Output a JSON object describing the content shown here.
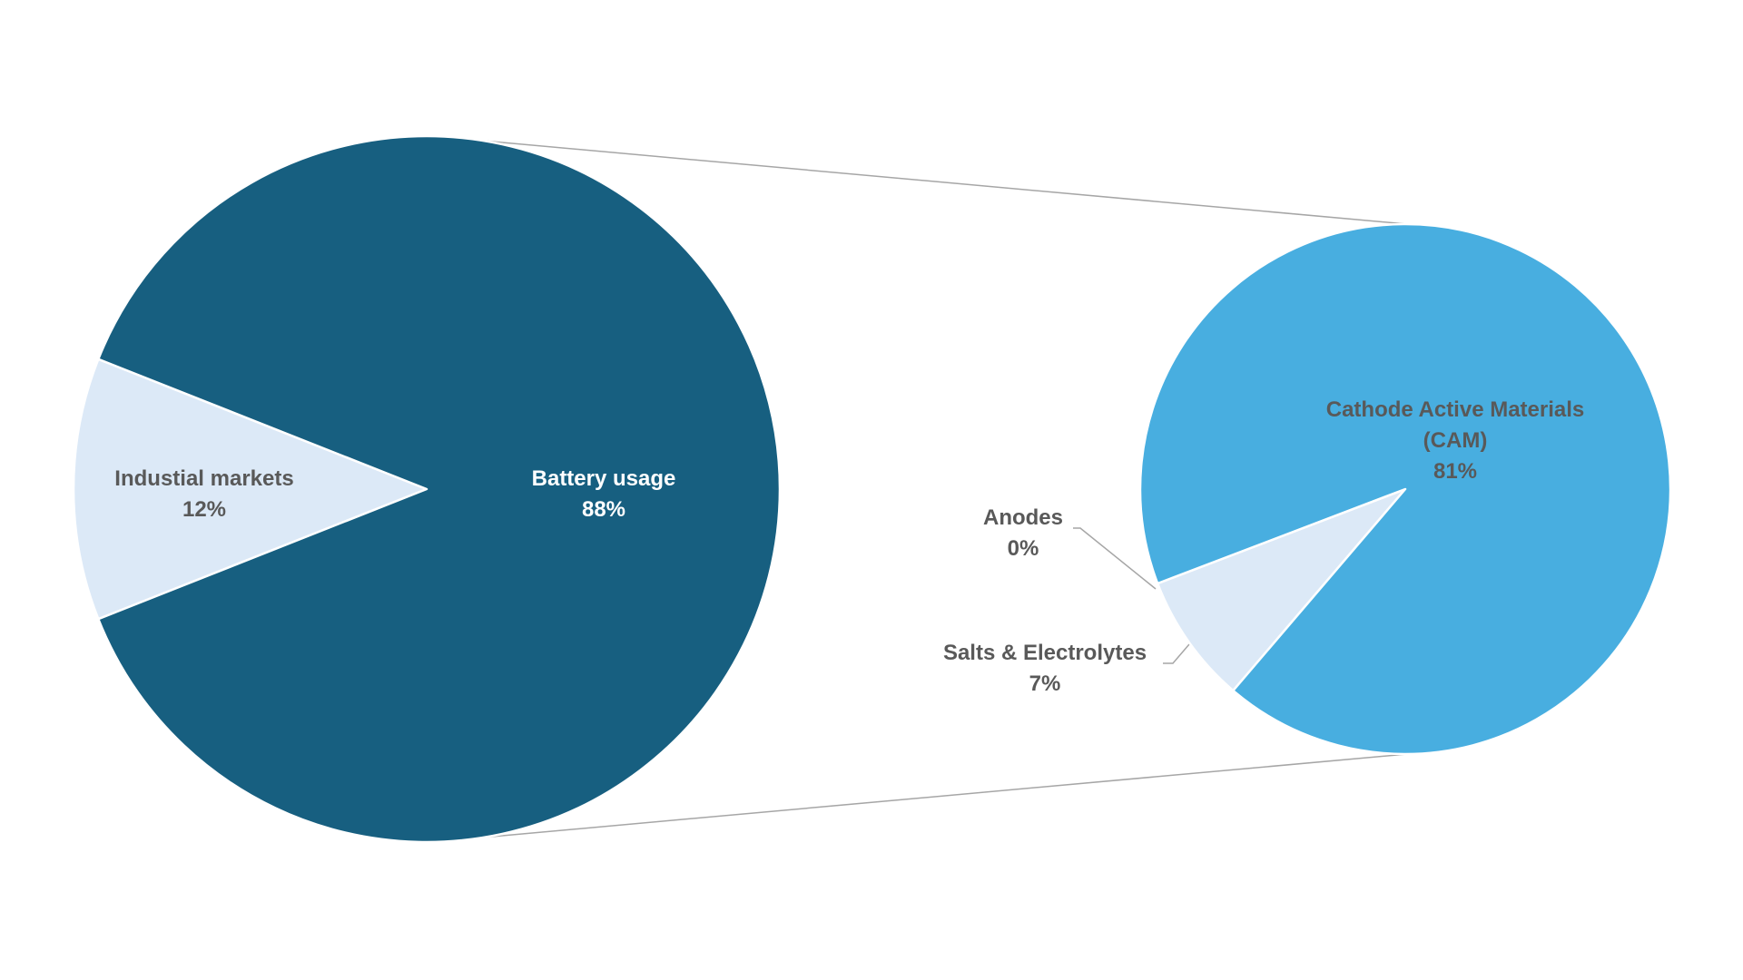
{
  "chart_data": [
    {
      "type": "pie",
      "categories": [
        "Industial markets",
        "Battery usage"
      ],
      "values": [
        12,
        88
      ],
      "value_labels": [
        "12%",
        "88%"
      ],
      "colors": [
        "#dce9f7",
        "#175f80"
      ]
    },
    {
      "type": "pie",
      "categories": [
        "Salts & Electrolytes",
        "Anodes",
        "Cathode Active Materials (CAM)"
      ],
      "values": [
        7,
        0,
        81
      ],
      "value_labels": [
        "7%",
        "0%",
        "81%"
      ],
      "colors": [
        "#dce9f7",
        "#dce9f7",
        "#48aee0"
      ]
    }
  ]
}
